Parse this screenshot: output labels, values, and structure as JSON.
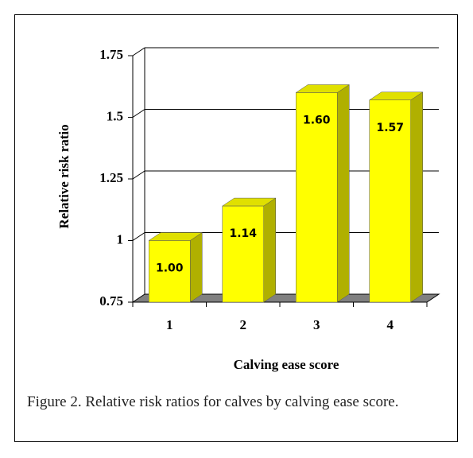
{
  "chart_data": {
    "type": "bar3d",
    "caption": "Figure 2.  Relative risk ratios for calves by calving ease score.",
    "x_label": "Calving ease score",
    "y_label": "Relative risk ratio",
    "categories": [
      "1",
      "2",
      "3",
      "4"
    ],
    "values": [
      1.0,
      1.14,
      1.6,
      1.57
    ],
    "value_labels": [
      "1.00",
      "1.14",
      "1.60",
      "1.57"
    ],
    "color": "#ffff00",
    "ylim": [
      0.75,
      1.75
    ],
    "yticks": [
      0.75,
      1,
      1.25,
      1.5,
      1.75
    ],
    "grid": true
  }
}
